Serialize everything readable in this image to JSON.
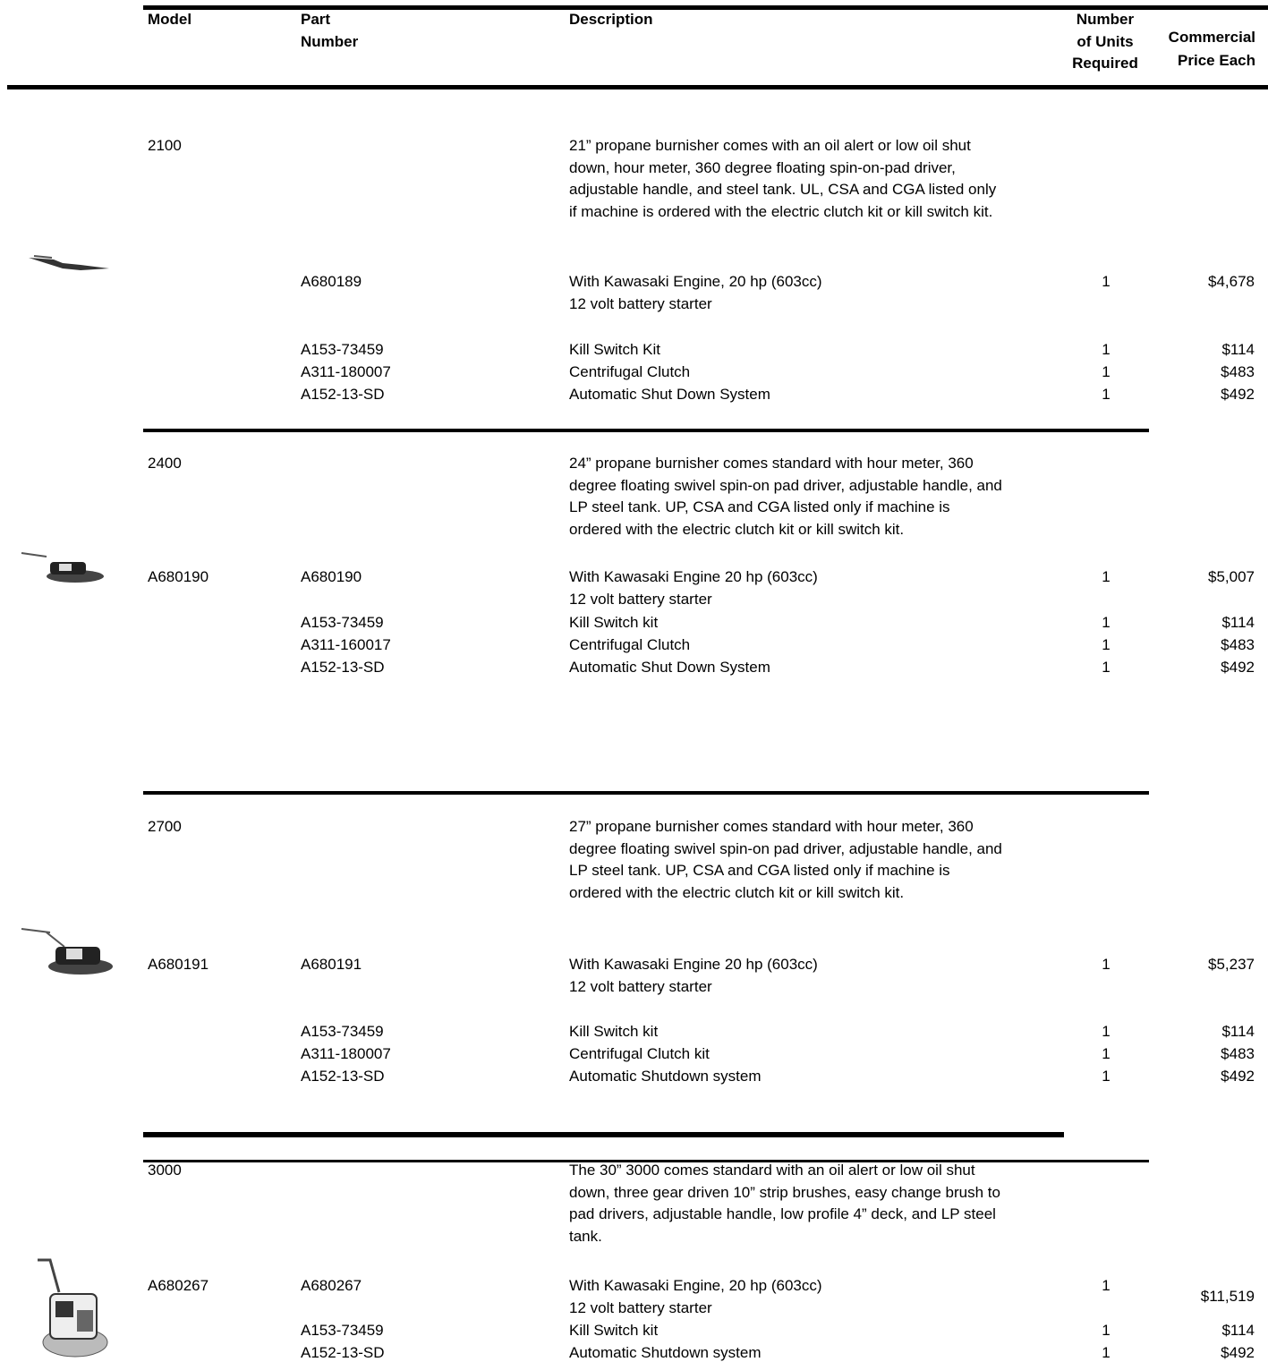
{
  "header": {
    "model": "Model",
    "part_number": [
      "Part",
      "Number"
    ],
    "description": "Description",
    "units": [
      "Number",
      "of Units",
      "Required"
    ],
    "price": [
      "Commercial",
      "Price Each"
    ]
  },
  "sections": [
    {
      "model": "2100",
      "description": [
        "21” propane burnisher comes with an oil alert or low oil shut",
        "down, hour meter, 360 degree floating spin-on-pad driver,",
        "adjustable handle, and steel tank. UL, CSA and CGA listed only",
        "if machine is ordered with the electric clutch kit or kill switch kit."
      ],
      "rows": [
        {
          "part": "A680189",
          "description": [
            "With Kawasaki Engine, 20 hp (603cc)",
            "12 volt battery starter"
          ],
          "units": 1,
          "price": "$4,678"
        },
        {
          "part": "A153-73459",
          "description": [
            "Kill Switch Kit"
          ],
          "units": 1,
          "price": "$114"
        },
        {
          "part": "A311-180007",
          "description": [
            "Centrifugal Clutch"
          ],
          "units": 1,
          "price": "$483"
        },
        {
          "part": "A152-13-SD",
          "description": [
            "Automatic Shut Down System"
          ],
          "units": 1,
          "price": "$492"
        }
      ]
    },
    {
      "model": "2400",
      "description": [
        "24” propane burnisher comes standard with hour meter, 360",
        "degree floating swivel spin-on pad driver, adjustable handle, and",
        "LP steel tank.  UP, CSA and CGA listed only if machine is",
        "ordered with the electric clutch kit or kill switch kit."
      ],
      "rows": [
        {
          "model": "A680190",
          "part": "A680190",
          "description": [
            "With Kawasaki Engine 20 hp (603cc)",
            "12 volt battery starter"
          ],
          "units": 1,
          "price": "$5,007"
        },
        {
          "part": "A153-73459",
          "description": [
            "Kill Switch kit"
          ],
          "units": 1,
          "price": "$114"
        },
        {
          "part": "A311-160017",
          "description": [
            "Centrifugal Clutch"
          ],
          "units": 1,
          "price": "$483"
        },
        {
          "part": "A152-13-SD",
          "description": [
            "Automatic Shut Down System"
          ],
          "units": 1,
          "price": "$492"
        }
      ]
    },
    {
      "model": "2700",
      "description": [
        "27” propane burnisher comes standard with hour meter, 360",
        "degree floating swivel spin-on pad driver, adjustable handle, and",
        "LP steel tank.  UP, CSA and CGA listed only if machine is",
        "ordered with the electric clutch kit or kill switch kit."
      ],
      "rows": [
        {
          "model": "A680191",
          "part": "A680191",
          "description": [
            "With Kawasaki Engine 20 hp (603cc)",
            "12 volt battery starter"
          ],
          "units": 1,
          "price": "$5,237"
        },
        {
          "part": "A153-73459",
          "description": [
            "Kill Switch kit"
          ],
          "units": 1,
          "price": "$114"
        },
        {
          "part": "A311-180007",
          "description": [
            "Centrifugal Clutch kit"
          ],
          "units": 1,
          "price": "$483"
        },
        {
          "part": "A152-13-SD",
          "description": [
            "Automatic Shutdown system"
          ],
          "units": 1,
          "price": "$492"
        }
      ]
    },
    {
      "model": "3000",
      "description": [
        "The 30” 3000 comes standard with an oil alert or low oil shut",
        "down, three gear driven 10” strip brushes, easy change brush to",
        "pad drivers, adjustable handle, low profile 4” deck, and LP steel",
        "tank."
      ],
      "rows": [
        {
          "model": "A680267",
          "part": "A680267",
          "description": [
            "With Kawasaki Engine, 20 hp (603cc)",
            "12 volt battery starter"
          ],
          "units": 1,
          "price": "$11,519"
        },
        {
          "part": "A153-73459",
          "description": [
            "Kill Switch kit"
          ],
          "units": 1,
          "price": "$114"
        },
        {
          "part": "A152-13-SD",
          "description": [
            "Automatic Shutdown system"
          ],
          "units": 1,
          "price": "$492"
        }
      ]
    }
  ]
}
